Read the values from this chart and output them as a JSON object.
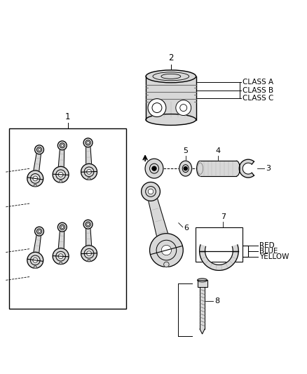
{
  "background_color": "#ffffff",
  "fig_width": 4.38,
  "fig_height": 5.33,
  "dpi": 100,
  "label1": "1",
  "label2": "2",
  "label3": "3",
  "label4": "4",
  "label5": "5",
  "label6": "6",
  "label7": "7",
  "label8": "8",
  "class_a": "CLASS A",
  "class_b": "CLASS B",
  "class_c": "CLASS C",
  "red_label": "RED",
  "blue_label": "BLUE",
  "yellow_label": "YELLOW",
  "lc": "#000000",
  "tc": "#000000",
  "lgray": "#d8d8d8",
  "mgray": "#b0b0b0",
  "dgray": "#707070"
}
